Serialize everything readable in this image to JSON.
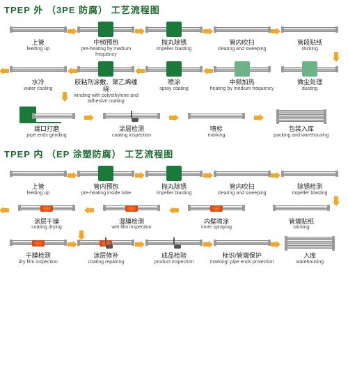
{
  "arrow_color": "#f5a623",
  "green": "#1a7a3a",
  "section1": {
    "title": "TPEP 外 （3PE 防腐） 工艺流程图",
    "rows": [
      {
        "dir": "r",
        "steps": [
          {
            "cn": "上管",
            "en": "feeding up",
            "kind": "pipe"
          },
          {
            "cn": "中频预热",
            "en": "pre-heating by medium frequency",
            "kind": "green"
          },
          {
            "cn": "抛丸除锈",
            "en": "impeller blasting",
            "kind": "green"
          },
          {
            "cn": "管内吹扫",
            "en": "clearing and sweeping",
            "kind": "pipe"
          },
          {
            "cn": "管段贴纸",
            "en": "sticking",
            "kind": "pipe"
          }
        ]
      },
      {
        "dir": "l",
        "steps": [
          {
            "cn": "水冷",
            "en": "water cooling",
            "kind": "pipe"
          },
          {
            "cn": "胶粘剂涂敷、聚乙烯缠绕",
            "en": "winding with polyethylene and adhesive coating",
            "kind": "green"
          },
          {
            "cn": "喷涂",
            "en": "spray coating",
            "kind": "green"
          },
          {
            "cn": "中频加热",
            "en": "heating by medium frequency",
            "kind": "green-light"
          },
          {
            "cn": "微尘处理",
            "en": "dusting",
            "kind": "green-light"
          }
        ]
      },
      {
        "dir": "r",
        "steps": [
          {
            "cn": "端口打磨",
            "en": "pipe ends grinding",
            "kind": "rack"
          },
          {
            "cn": "涂层检测",
            "en": "coating inspection",
            "kind": "spray"
          },
          {
            "cn": "喷标",
            "en": "marking",
            "kind": "pipe"
          },
          {
            "cn": "包装入库",
            "en": "packing and warehousing",
            "kind": "stack"
          }
        ]
      }
    ]
  },
  "section2": {
    "title": "TPEP 内 （EP 涂塑防腐） 工艺流程图",
    "rows": [
      {
        "dir": "r",
        "steps": [
          {
            "cn": "上管",
            "en": "feeding up",
            "kind": "pipe"
          },
          {
            "cn": "管内预热",
            "en": "pre-heating inside tube",
            "kind": "green"
          },
          {
            "cn": "抛丸除锈",
            "en": "impeller blasting",
            "kind": "green"
          },
          {
            "cn": "管内吹扫",
            "en": "clearing and sweeping",
            "kind": "pipe"
          },
          {
            "cn": "除锈检测",
            "en": "impeller blasting",
            "kind": "pipe"
          }
        ]
      },
      {
        "dir": "l",
        "steps": [
          {
            "cn": "涂层干燥",
            "en": "coating drying",
            "kind": "red"
          },
          {
            "cn": "湿膜检测",
            "en": "wet film inspection",
            "kind": "red"
          },
          {
            "cn": "内壁喷涂",
            "en": "inner spraying",
            "kind": "red"
          },
          {
            "cn": "管端贴纸",
            "en": "sticking",
            "kind": "pipe"
          }
        ]
      },
      {
        "dir": "r",
        "steps": [
          {
            "cn": "干膜检测",
            "en": "dry film inspection",
            "kind": "red"
          },
          {
            "cn": "涂层修补",
            "en": "coating repairing",
            "kind": "spray-red"
          },
          {
            "cn": "成品检验",
            "en": "product inspection",
            "kind": "spray"
          },
          {
            "cn": "标识/管端保护",
            "en": "marking/ pipe ends protection",
            "kind": "pipe"
          },
          {
            "cn": "入库",
            "en": "warehousing",
            "kind": "stack"
          }
        ]
      }
    ]
  }
}
